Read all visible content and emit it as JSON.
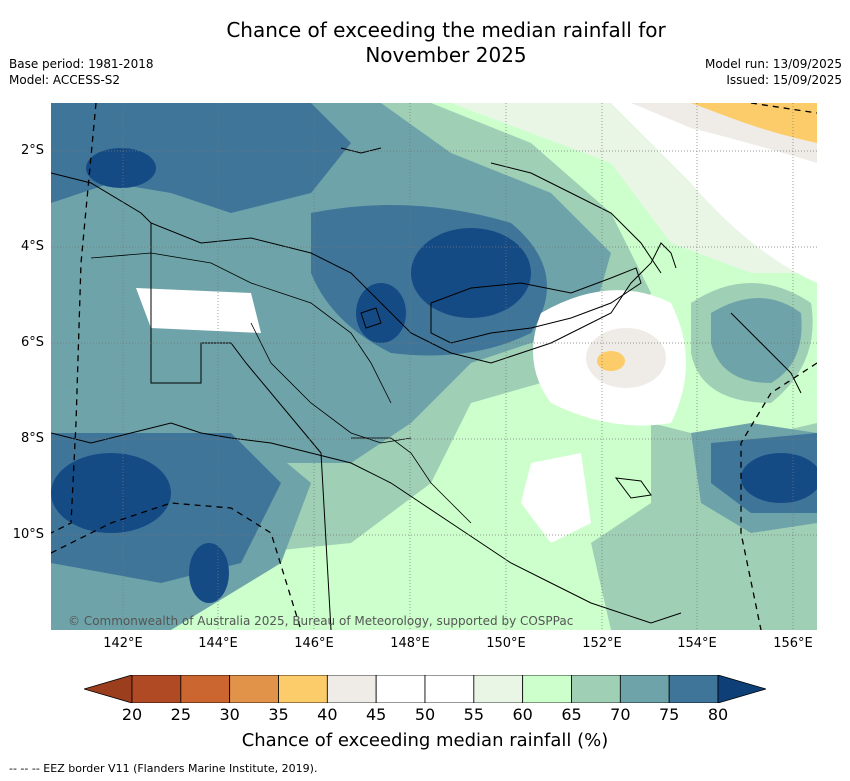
{
  "title_line1": "Chance of exceeding the median rainfall for",
  "title_line2": "November 2025",
  "base_period": "Base period: 1981-2018",
  "model": "Model: ACCESS-S2",
  "model_run": "Model run: 13/09/2025",
  "issued": "Issued: 15/09/2025",
  "lat_labels": [
    "2°S",
    "4°S",
    "6°S",
    "8°S",
    "10°S"
  ],
  "lon_labels": [
    "142°E",
    "144°E",
    "146°E",
    "148°E",
    "150°E",
    "152°E",
    "154°E",
    "156°E"
  ],
  "copyright": "© Commonwealth of Australia 2025, Bureau of Meteorology, supported by COSPPac",
  "colorbar": {
    "ticks": [
      "20",
      "25",
      "30",
      "35",
      "40",
      "45",
      "50",
      "55",
      "60",
      "65",
      "70",
      "75",
      "80"
    ],
    "colors": [
      "#b04a25",
      "#cb6630",
      "#e2934a",
      "#fdcc6a",
      "#efece8",
      "#ffffff",
      "#ffffff",
      "#e9f6e6",
      "#ccffcc",
      "#9fcfb5",
      "#6ea4a9",
      "#3f7599",
      "#154b85"
    ],
    "label": "Chance of exceeding median rainfall (%)"
  },
  "eez_note": "--  --  -- EEZ border V11 (Flanders Marine Institute, 2019)."
}
